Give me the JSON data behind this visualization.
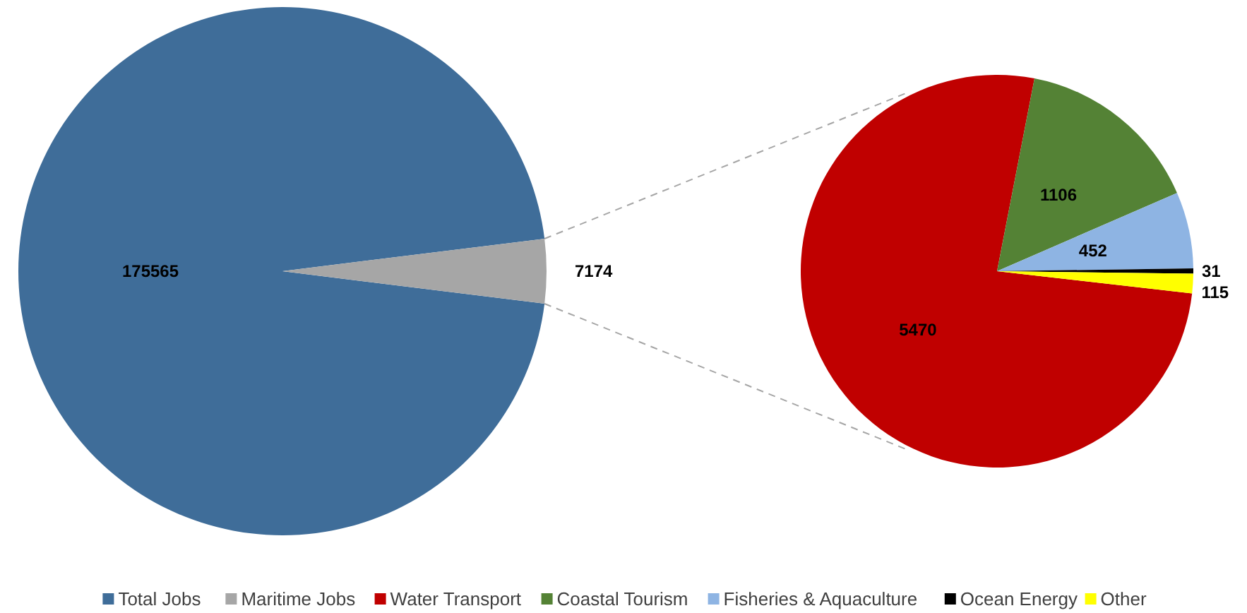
{
  "chart_data": [
    {
      "type": "pie",
      "categories": [
        "Total Jobs",
        "Maritime Jobs"
      ],
      "values": [
        175565,
        7174
      ],
      "colors": [
        "#3f6d99",
        "#a6a6a6"
      ],
      "data_labels": true,
      "legend": "bottom"
    },
    {
      "type": "pie",
      "categories": [
        "Water Transport",
        "Coastal Tourism",
        "Fisheries & Aquaculture",
        "Ocean Energy",
        "Other"
      ],
      "values": [
        5470,
        1106,
        452,
        31,
        115
      ],
      "colors": [
        "#c00000",
        "#548235",
        "#8eb4e3",
        "#000000",
        "#ffff00"
      ],
      "data_labels": true,
      "legend": "bottom"
    }
  ]
}
